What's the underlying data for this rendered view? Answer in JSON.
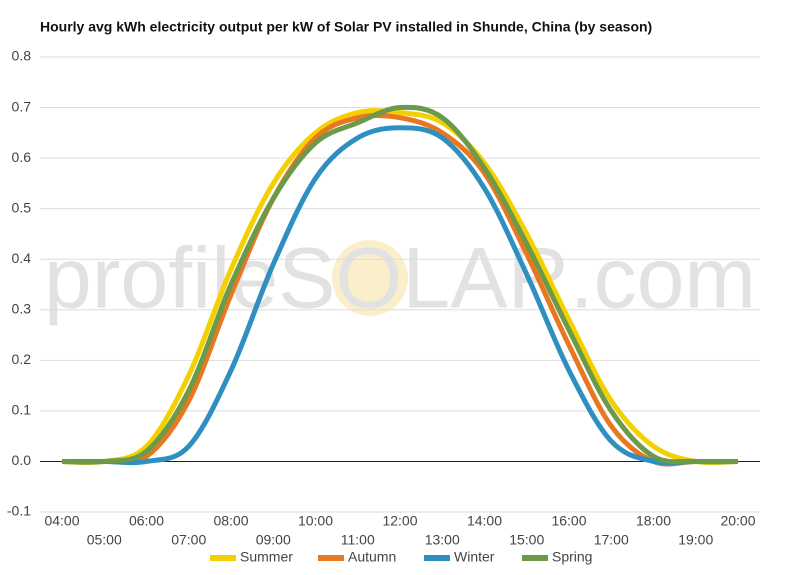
{
  "chart_data": {
    "type": "line",
    "title": "Hourly avg kWh electricity output per kW of Solar PV installed in Shunde, China (by season)",
    "watermark": "profileSOLAR.com",
    "categories": [
      "04:00",
      "05:00",
      "06:00",
      "07:00",
      "08:00",
      "09:00",
      "10:00",
      "11:00",
      "12:00",
      "13:00",
      "14:00",
      "15:00",
      "16:00",
      "17:00",
      "18:00",
      "19:00",
      "20:00"
    ],
    "series": [
      {
        "name": "Summer",
        "color": "#f5d000",
        "values": [
          0,
          0,
          0.03,
          0.17,
          0.38,
          0.55,
          0.65,
          0.69,
          0.69,
          0.67,
          0.59,
          0.45,
          0.28,
          0.12,
          0.03,
          0,
          0
        ]
      },
      {
        "name": "Autumn",
        "color": "#e87722",
        "values": [
          0,
          0,
          0.01,
          0.12,
          0.33,
          0.52,
          0.64,
          0.68,
          0.68,
          0.65,
          0.57,
          0.41,
          0.23,
          0.07,
          0,
          0,
          0
        ]
      },
      {
        "name": "Winter",
        "color": "#2e8fc0",
        "values": [
          0,
          0,
          0,
          0.03,
          0.18,
          0.39,
          0.56,
          0.64,
          0.66,
          0.64,
          0.54,
          0.37,
          0.18,
          0.04,
          0,
          0,
          0
        ]
      },
      {
        "name": "Spring",
        "color": "#6a9a4a",
        "values": [
          0,
          0,
          0.02,
          0.14,
          0.35,
          0.52,
          0.63,
          0.67,
          0.7,
          0.68,
          0.58,
          0.43,
          0.26,
          0.1,
          0.01,
          0,
          0
        ]
      }
    ],
    "ylim": [
      -0.1,
      0.8
    ],
    "yticks": [
      -0.1,
      {
        "value": 0,
        "label": "0.0"
      },
      0.1,
      0.2,
      0.3,
      0.4,
      0.5,
      0.6,
      0.7,
      0.8
    ],
    "grid": true,
    "legend": "bottom"
  }
}
